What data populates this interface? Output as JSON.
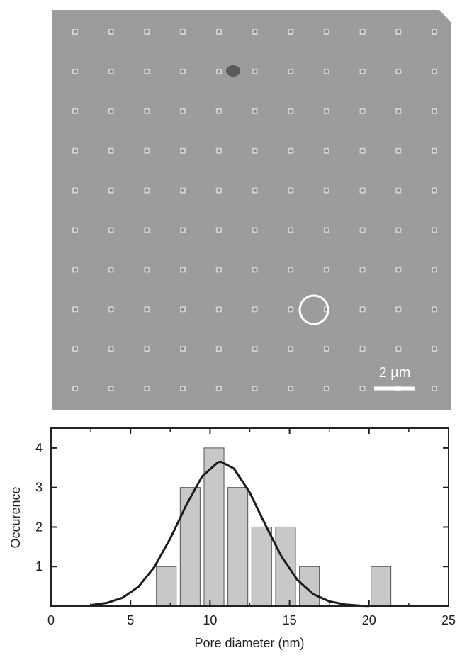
{
  "image": {
    "scale_bar_label": "2 µm"
  },
  "chart_data": {
    "type": "histogram",
    "xlabel": "Pore diameter (nm)",
    "ylabel": "Occurence",
    "bins": [
      6.5,
      8,
      9.5,
      11,
      12.5,
      14,
      15.5,
      17,
      18.5,
      20,
      21.5
    ],
    "counts": [
      1,
      3,
      4,
      3,
      2,
      2,
      1,
      0,
      0,
      1
    ],
    "color": "#c8c8c8",
    "fit": {
      "x": [
        2.5,
        3.5,
        4.5,
        5.5,
        6.5,
        7.5,
        8.5,
        9.5,
        10.5,
        10.7,
        11.5,
        12.5,
        13.5,
        14.5,
        15.5,
        16.5,
        17.5,
        18.5,
        19.5,
        20
      ],
      "values": [
        0.025,
        0.08,
        0.21,
        0.49,
        0.99,
        1.71,
        2.55,
        3.28,
        3.64,
        3.65,
        3.48,
        2.87,
        2.04,
        1.25,
        0.66,
        0.3,
        0.12,
        0.04,
        0.01,
        0.005
      ],
      "color": "#1a1a1a"
    },
    "xlim": [
      0,
      25
    ],
    "xticks": [
      0,
      5,
      10,
      15,
      20,
      25
    ],
    "ylim": [
      0,
      4.5
    ],
    "yticks": [
      1,
      2,
      3,
      4
    ]
  }
}
